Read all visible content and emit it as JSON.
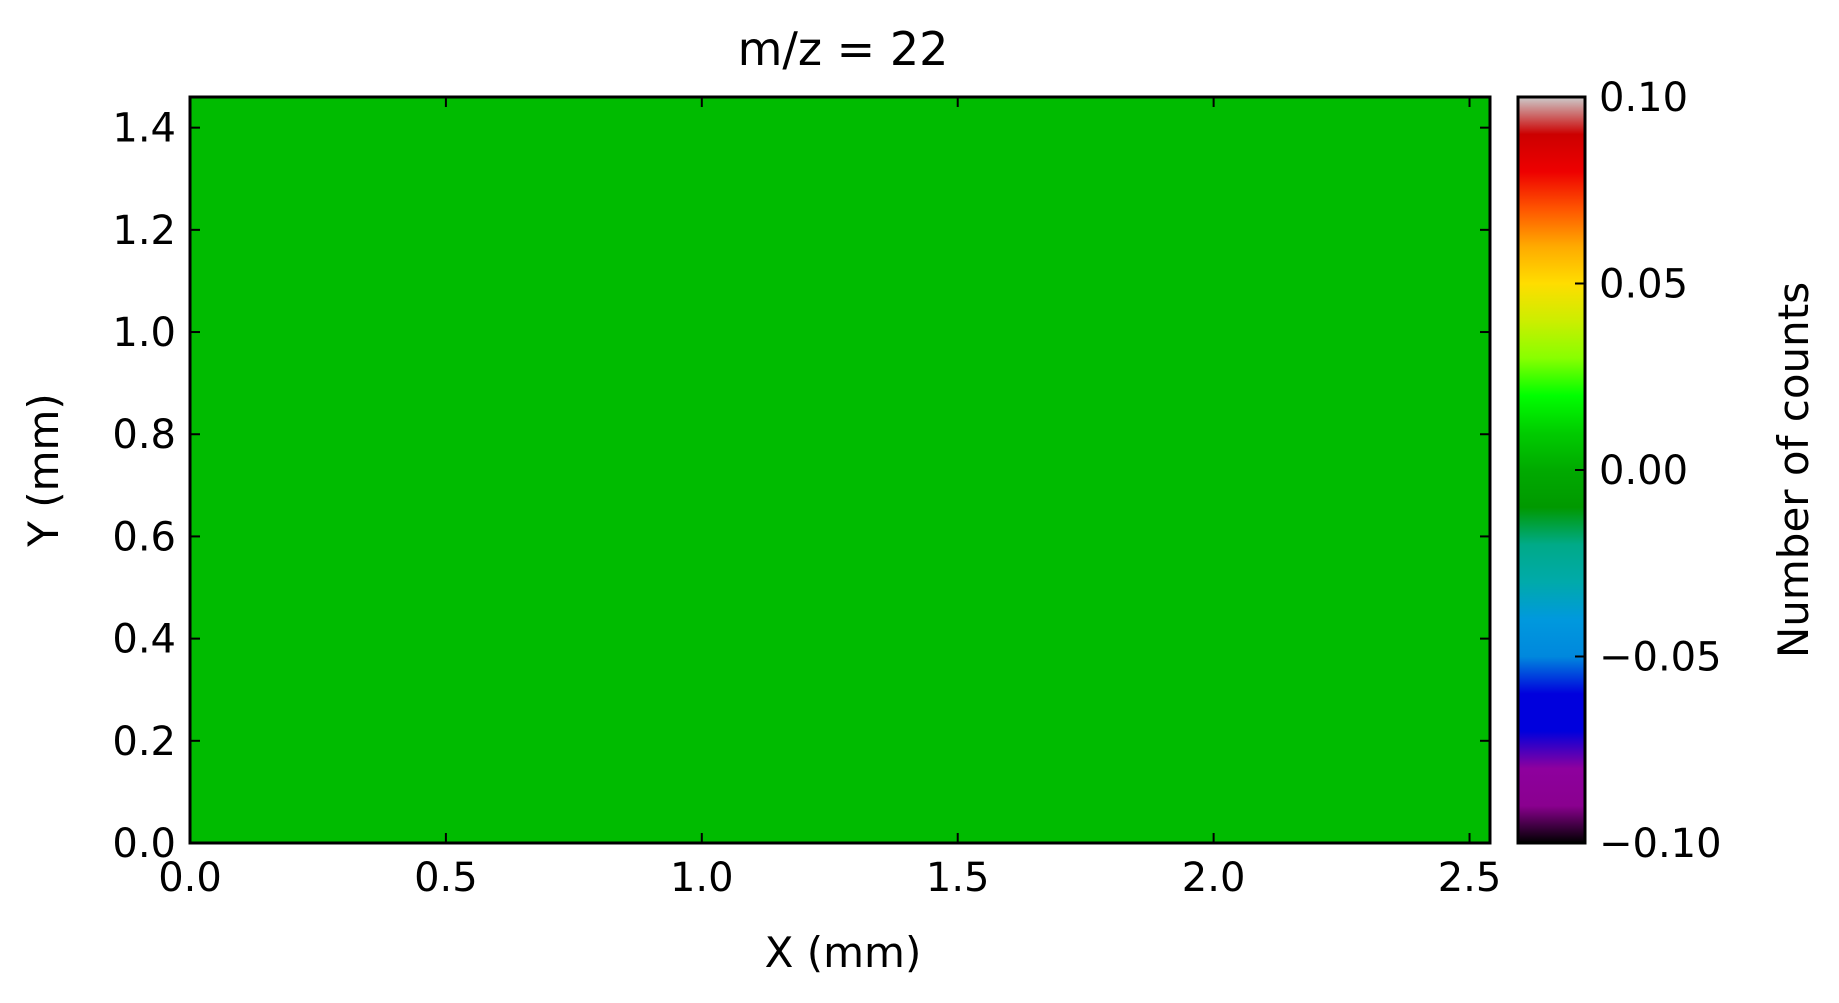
{
  "chart_data": {
    "type": "heatmap",
    "title": "m/z = 22",
    "xlabel": "X (mm)",
    "ylabel": "Y (mm)",
    "xlim": [
      0,
      2.54
    ],
    "ylim": [
      0,
      1.46
    ],
    "xticks": [
      0.0,
      0.5,
      1.0,
      1.5,
      2.0,
      2.5
    ],
    "xtick_labels": [
      "0.0",
      "0.5",
      "1.0",
      "1.5",
      "2.0",
      "2.5"
    ],
    "yticks": [
      0.0,
      0.2,
      0.4,
      0.6,
      0.8,
      1.0,
      1.2,
      1.4
    ],
    "ytick_labels": [
      "0.0",
      "0.2",
      "0.4",
      "0.6",
      "0.8",
      "1.0",
      "1.2",
      "1.4"
    ],
    "values": [
      [
        0.0
      ]
    ],
    "fill_color": "#00bb00",
    "grid": false,
    "colorbar": {
      "label": "Number of counts",
      "range": [
        -0.1,
        0.1
      ],
      "ticks": [
        -0.1,
        -0.05,
        0.0,
        0.05,
        0.1
      ],
      "tick_labels": [
        "−0.10",
        "−0.05",
        "0.00",
        "0.05",
        "0.10"
      ],
      "colormap": "nipy_spectral"
    }
  }
}
